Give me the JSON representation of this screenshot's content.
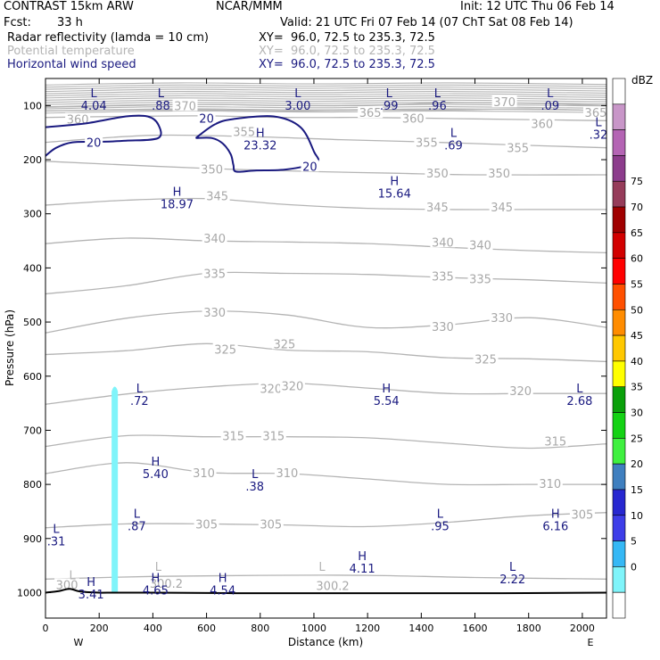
{
  "header": {
    "title": "CONTRAST 15km ARW",
    "org": "NCAR/MMM",
    "init": "Init: 12 UTC Thu 06 Feb 14",
    "fcst_label": "Fcst:",
    "fcst_value": "33 h",
    "valid": "Valid: 21 UTC Fri 07 Feb 14 (07 ChT Sat 08 Feb 14)",
    "fields": [
      {
        "name": "Radar reflectivity (lamda = 10 cm)",
        "xy": "XY=  96.0, 72.5 to 235.3, 72.5"
      },
      {
        "name": "Potential temperature",
        "xy": "XY=  96.0, 72.5 to 235.3, 72.5"
      },
      {
        "name": "Horizontal wind speed",
        "xy": "XY=  96.0, 72.5 to 235.3, 72.5"
      }
    ]
  },
  "chart_data": {
    "type": "cross-section",
    "xlabel": "Distance (km)",
    "ylabel": "Pressure (hPa)",
    "xlim": [
      0,
      2090
    ],
    "ylim": [
      1047,
      50
    ],
    "x_ticks": [
      0,
      200,
      400,
      600,
      800,
      1000,
      1200,
      1400,
      1600,
      1800,
      2000
    ],
    "y_ticks": [
      100,
      200,
      300,
      400,
      500,
      600,
      700,
      800,
      900,
      1000
    ],
    "left_end_label": "W",
    "right_end_label": "E",
    "colors": {
      "theta": "#b4b4b4",
      "wind": "#1a1a80",
      "terrain": "#000000",
      "reflectivity": "#7ff4fa"
    },
    "theta_contours": [
      {
        "value": 370,
        "label": "370",
        "points": [
          [
            0,
            103
          ],
          [
            300,
            100
          ],
          [
            600,
            98
          ],
          [
            900,
            100
          ],
          [
            1200,
            100
          ],
          [
            1500,
            95
          ],
          [
            1800,
            96
          ],
          [
            2090,
            100
          ]
        ],
        "labels": [
          [
            520,
            100,
            "370"
          ],
          [
            1710,
            93,
            "370"
          ]
        ]
      },
      {
        "value": 365,
        "label": "365",
        "points": [
          [
            0,
            110
          ],
          [
            300,
            108
          ],
          [
            600,
            108
          ],
          [
            900,
            110
          ],
          [
            1200,
            108
          ],
          [
            1500,
            108
          ],
          [
            1800,
            106
          ],
          [
            2090,
            110
          ]
        ],
        "labels": [
          [
            1210,
            113,
            "365"
          ],
          [
            2050,
            113,
            "365"
          ]
        ]
      },
      {
        "value": 360,
        "label": "360",
        "points": [
          [
            0,
            122
          ],
          [
            300,
            120
          ],
          [
            600,
            119
          ],
          [
            900,
            122
          ],
          [
            1200,
            122
          ],
          [
            1500,
            124
          ],
          [
            1800,
            126
          ],
          [
            2090,
            128
          ]
        ],
        "labels": [
          [
            120,
            125,
            "360"
          ],
          [
            1370,
            123,
            "360"
          ],
          [
            1850,
            133,
            "360"
          ]
        ]
      },
      {
        "value": 355,
        "label": "355",
        "points": [
          [
            0,
            168
          ],
          [
            400,
            155
          ],
          [
            800,
            158
          ],
          [
            1100,
            163
          ],
          [
            1400,
            167
          ],
          [
            1700,
            172
          ],
          [
            2090,
            178
          ]
        ],
        "labels": [
          [
            740,
            148,
            "355"
          ],
          [
            1420,
            168,
            "355"
          ],
          [
            1760,
            178,
            "355"
          ]
        ]
      },
      {
        "value": 350,
        "label": "350",
        "points": [
          [
            0,
            203
          ],
          [
            400,
            212
          ],
          [
            700,
            218
          ],
          [
            1000,
            222
          ],
          [
            1300,
            225
          ],
          [
            1600,
            228
          ],
          [
            2090,
            228
          ]
        ],
        "labels": [
          [
            620,
            217,
            "350"
          ],
          [
            1460,
            225,
            "350"
          ],
          [
            1690,
            225,
            "350"
          ]
        ]
      },
      {
        "value": 345,
        "label": "345",
        "points": [
          [
            0,
            284
          ],
          [
            300,
            275
          ],
          [
            600,
            272
          ],
          [
            900,
            283
          ],
          [
            1200,
            290
          ],
          [
            1500,
            292
          ],
          [
            1800,
            292
          ],
          [
            2090,
            292
          ]
        ],
        "labels": [
          [
            640,
            267,
            "345"
          ],
          [
            1460,
            287,
            "345"
          ],
          [
            1700,
            287,
            "345"
          ]
        ]
      },
      {
        "value": 340,
        "label": "340",
        "points": [
          [
            0,
            355
          ],
          [
            300,
            345
          ],
          [
            600,
            350
          ],
          [
            900,
            352
          ],
          [
            1200,
            355
          ],
          [
            1500,
            362
          ],
          [
            1800,
            368
          ],
          [
            2090,
            372
          ]
        ],
        "labels": [
          [
            630,
            345,
            "340"
          ],
          [
            1480,
            352,
            "340"
          ],
          [
            1620,
            357,
            "340"
          ]
        ]
      },
      {
        "value": 335,
        "label": "335",
        "points": [
          [
            0,
            448
          ],
          [
            300,
            433
          ],
          [
            600,
            410
          ],
          [
            900,
            410
          ],
          [
            1200,
            412
          ],
          [
            1500,
            418
          ],
          [
            1800,
            422
          ],
          [
            2090,
            428
          ]
        ],
        "labels": [
          [
            630,
            410,
            "335"
          ],
          [
            1480,
            415,
            "335"
          ],
          [
            1620,
            420,
            "335"
          ]
        ]
      },
      {
        "value": 330,
        "label": "330",
        "points": [
          [
            0,
            520
          ],
          [
            300,
            493
          ],
          [
            600,
            480
          ],
          [
            900,
            487
          ],
          [
            1200,
            510
          ],
          [
            1500,
            505
          ],
          [
            1800,
            492
          ],
          [
            2090,
            510
          ]
        ],
        "labels": [
          [
            630,
            482,
            "330"
          ],
          [
            1480,
            508,
            "330"
          ],
          [
            1700,
            492,
            "330"
          ]
        ]
      },
      {
        "value": 325,
        "label": "325",
        "points": [
          [
            0,
            560
          ],
          [
            300,
            553
          ],
          [
            600,
            540
          ],
          [
            900,
            552
          ],
          [
            1200,
            555
          ],
          [
            1500,
            566
          ],
          [
            1800,
            568
          ],
          [
            2090,
            573
          ]
        ],
        "labels": [
          [
            670,
            550,
            "325"
          ],
          [
            890,
            540,
            "325"
          ],
          [
            1640,
            568,
            "325"
          ]
        ]
      },
      {
        "value": 320,
        "label": "320",
        "points": [
          [
            0,
            652
          ],
          [
            300,
            633
          ],
          [
            600,
            620
          ],
          [
            900,
            613
          ],
          [
            1200,
            622
          ],
          [
            1500,
            632
          ],
          [
            1800,
            632
          ],
          [
            2090,
            632
          ]
        ],
        "labels": [
          [
            840,
            623,
            "320"
          ],
          [
            920,
            618,
            "320"
          ],
          [
            1770,
            627,
            "320"
          ]
        ]
      },
      {
        "value": 315,
        "label": "315",
        "points": [
          [
            0,
            730
          ],
          [
            300,
            710
          ],
          [
            600,
            712
          ],
          [
            900,
            712
          ],
          [
            1200,
            714
          ],
          [
            1500,
            724
          ],
          [
            1800,
            733
          ],
          [
            2090,
            725
          ]
        ],
        "labels": [
          [
            700,
            710,
            "315"
          ],
          [
            850,
            710,
            "315"
          ],
          [
            1900,
            720,
            "315"
          ]
        ]
      },
      {
        "value": 310,
        "label": "310",
        "points": [
          [
            0,
            780
          ],
          [
            300,
            760
          ],
          [
            600,
            778
          ],
          [
            900,
            780
          ],
          [
            1200,
            790
          ],
          [
            1500,
            800
          ],
          [
            1800,
            800
          ],
          [
            2090,
            800
          ]
        ],
        "labels": [
          [
            590,
            778,
            "310"
          ],
          [
            900,
            778,
            "310"
          ],
          [
            1880,
            798,
            "310"
          ]
        ]
      },
      {
        "value": 305,
        "label": "305",
        "points": [
          [
            0,
            880
          ],
          [
            300,
            873
          ],
          [
            600,
            873
          ],
          [
            900,
            875
          ],
          [
            1200,
            878
          ],
          [
            1500,
            870
          ],
          [
            1800,
            858
          ],
          [
            2090,
            852
          ]
        ],
        "labels": [
          [
            600,
            873,
            "305"
          ],
          [
            840,
            873,
            "305"
          ],
          [
            2000,
            855,
            "305"
          ]
        ]
      },
      {
        "value": 300.2,
        "label": "300.2",
        "points": [
          [
            0,
            975
          ],
          [
            400,
            970
          ],
          [
            800,
            968
          ],
          [
            1200,
            968
          ],
          [
            1600,
            972
          ],
          [
            2090,
            975
          ]
        ],
        "labels": [
          [
            450,
            983,
            "300.2"
          ],
          [
            1070,
            987,
            "300.2"
          ],
          [
            80,
            985,
            "300"
          ]
        ]
      }
    ],
    "wind_contours": [
      {
        "value": 20,
        "label": "20",
        "points": [
          [
            0,
            140
          ],
          [
            150,
            133
          ],
          [
            300,
            120
          ],
          [
            380,
            120
          ],
          [
            420,
            135
          ],
          [
            420,
            160
          ],
          [
            300,
            165
          ],
          [
            200,
            167
          ],
          [
            100,
            168
          ],
          [
            40,
            178
          ],
          [
            0,
            193
          ]
        ],
        "labels": [
          [
            180,
            168,
            "20"
          ]
        ]
      },
      {
        "value": 20,
        "label": "20",
        "points": [
          [
            560,
            160
          ],
          [
            630,
            135
          ],
          [
            700,
            125
          ],
          [
            850,
            120
          ],
          [
            950,
            140
          ],
          [
            1000,
            185
          ],
          [
            1010,
            205
          ],
          [
            900,
            218
          ],
          [
            780,
            220
          ],
          [
            710,
            222
          ],
          [
            700,
            210
          ],
          [
            690,
            190
          ],
          [
            660,
            170
          ],
          [
            620,
            160
          ],
          [
            560,
            160
          ]
        ],
        "labels": [
          [
            600,
            123,
            "20"
          ],
          [
            985,
            212,
            "20"
          ]
        ]
      }
    ],
    "terrain": {
      "points": [
        [
          0,
          1000
        ],
        [
          50,
          997
        ],
        [
          90,
          993
        ],
        [
          130,
          998
        ],
        [
          200,
          1000
        ],
        [
          230,
          1000
        ],
        [
          400,
          1000
        ],
        [
          700,
          1001
        ],
        [
          1200,
          1001
        ],
        [
          1700,
          1001
        ],
        [
          2090,
          1000
        ]
      ]
    },
    "reflectivity": {
      "x": 258,
      "p_top": 612,
      "p_bottom": 1000,
      "dbz": 10
    },
    "extrema": [
      {
        "type": "L",
        "value": "4.04",
        "x": 180,
        "p": 85
      },
      {
        "type": "L",
        "value": ".88",
        "x": 430,
        "p": 85
      },
      {
        "type": "L",
        "value": "3.00",
        "x": 940,
        "p": 85
      },
      {
        "type": "L",
        "value": ".99",
        "x": 1280,
        "p": 85
      },
      {
        "type": "L",
        "value": ".96",
        "x": 1460,
        "p": 85
      },
      {
        "type": "L",
        "value": ".09",
        "x": 1880,
        "p": 85
      },
      {
        "type": "H",
        "value": "23.32",
        "x": 800,
        "p": 158
      },
      {
        "type": "L",
        "value": ".69",
        "x": 1520,
        "p": 158
      },
      {
        "type": "L",
        "value": ".32",
        "x": 2060,
        "p": 138
      },
      {
        "type": "H",
        "value": "18.97",
        "x": 490,
        "p": 267
      },
      {
        "type": "H",
        "value": "15.64",
        "x": 1300,
        "p": 247
      },
      {
        "type": "L",
        "value": ".72",
        "x": 350,
        "p": 630
      },
      {
        "type": "H",
        "value": "5.54",
        "x": 1270,
        "p": 630
      },
      {
        "type": "L",
        "value": "2.68",
        "x": 1990,
        "p": 630
      },
      {
        "type": "H",
        "value": "5.40",
        "x": 410,
        "p": 765
      },
      {
        "type": "L",
        "value": ".38",
        "x": 780,
        "p": 788
      },
      {
        "type": "L",
        "value": ".87",
        "x": 340,
        "p": 862
      },
      {
        "type": "L",
        "value": ".95",
        "x": 1470,
        "p": 862
      },
      {
        "type": "H",
        "value": "6.16",
        "x": 1900,
        "p": 862
      },
      {
        "type": "L",
        "value": ".31",
        "x": 40,
        "p": 890
      },
      {
        "type": "H",
        "value": "4.11",
        "x": 1180,
        "p": 940
      },
      {
        "type": "L",
        "value": "2.22",
        "x": 1740,
        "p": 960
      },
      {
        "type": "H",
        "value": "4.65",
        "x": 410,
        "p": 980
      },
      {
        "type": "H",
        "value": "4.54",
        "x": 660,
        "p": 980
      },
      {
        "type": "H",
        "value": "3.41",
        "x": 170,
        "p": 988
      }
    ],
    "gray_extrema": [
      {
        "type": "L",
        "value": "",
        "x": 420,
        "p": 960
      },
      {
        "type": "L",
        "value": "",
        "x": 1030,
        "p": 960
      },
      {
        "type": "L",
        "value": "",
        "x": 100,
        "p": 975
      }
    ],
    "colorbar": {
      "unit": "dBZ",
      "levels": [
        0,
        5,
        10,
        15,
        20,
        25,
        30,
        35,
        40,
        45,
        50,
        55,
        60,
        65,
        70,
        75
      ],
      "colors": [
        "#ffffff",
        "#7ff4fa",
        "#35b8f5",
        "#3d3de8",
        "#2727d0",
        "#3f7fbf",
        "#3ff03f",
        "#14d214",
        "#0aa00a",
        "#ffff00",
        "#ffc800",
        "#ff8c00",
        "#ff5000",
        "#ff0000",
        "#d20000",
        "#a00000",
        "#963c5a",
        "#8c3c8c",
        "#b464b4",
        "#c896c8",
        "#ffffff"
      ]
    }
  }
}
